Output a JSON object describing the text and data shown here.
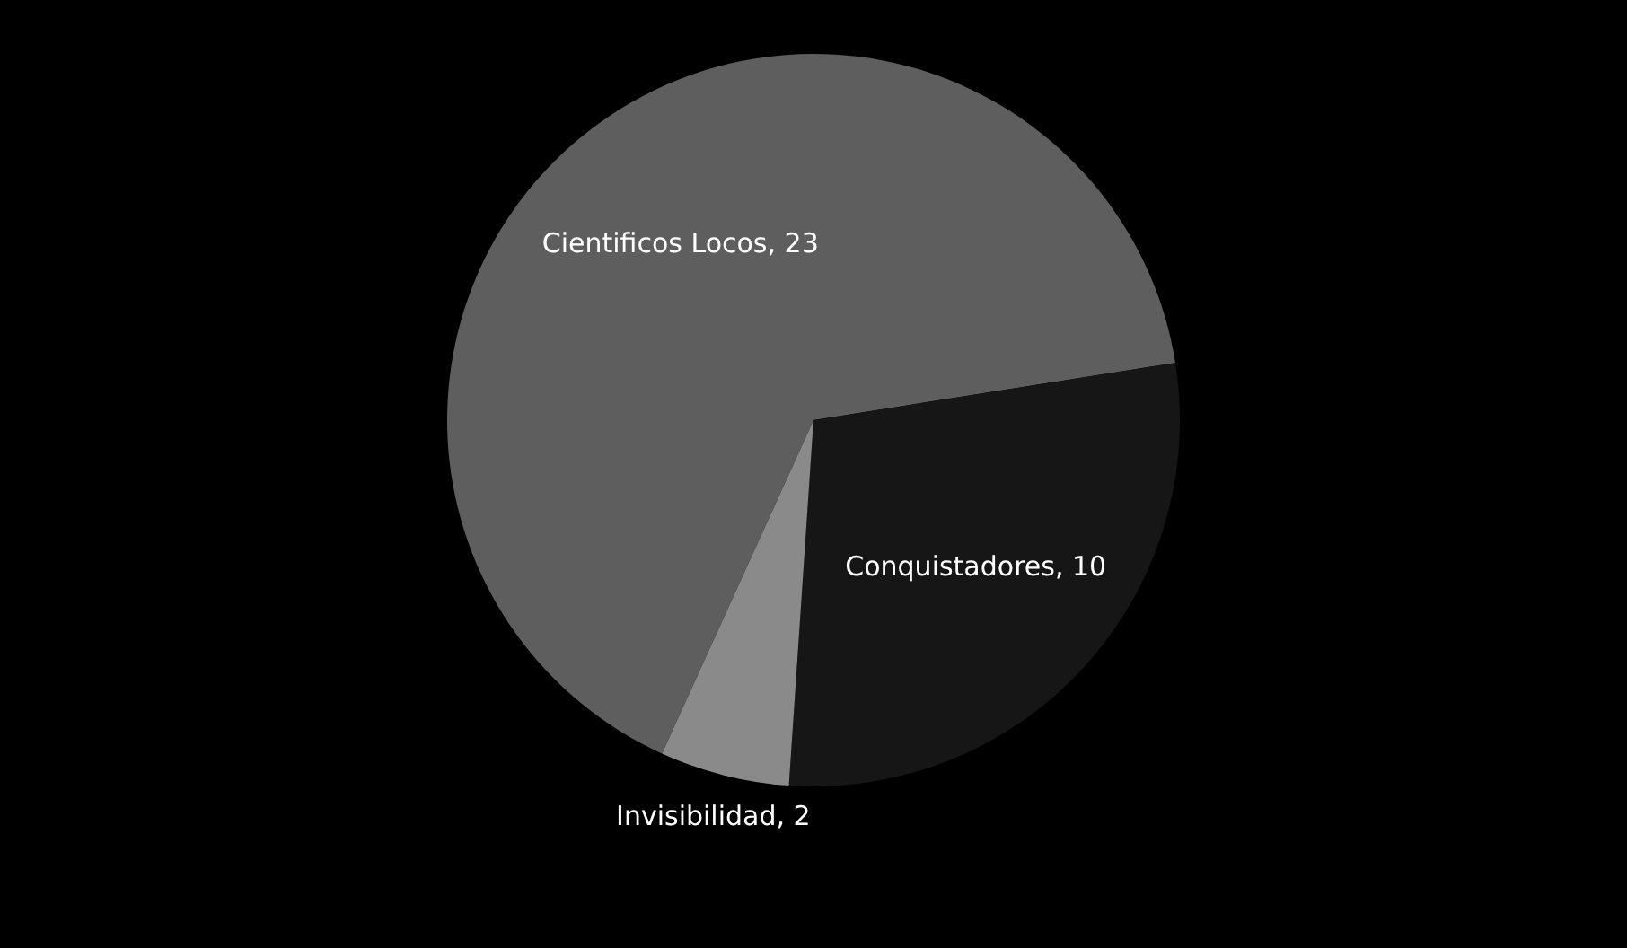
{
  "chart_data": {
    "type": "pie",
    "categories": [
      "Cientificos Locos",
      "Conquistadores",
      "Invisibilidad"
    ],
    "values": [
      23,
      10,
      2
    ],
    "value_labels": [
      ", 23",
      ", 10",
      ", 2"
    ],
    "colors": [
      "#5e5e5e",
      "#161616",
      "#8a8a8a"
    ],
    "legend": false
  }
}
